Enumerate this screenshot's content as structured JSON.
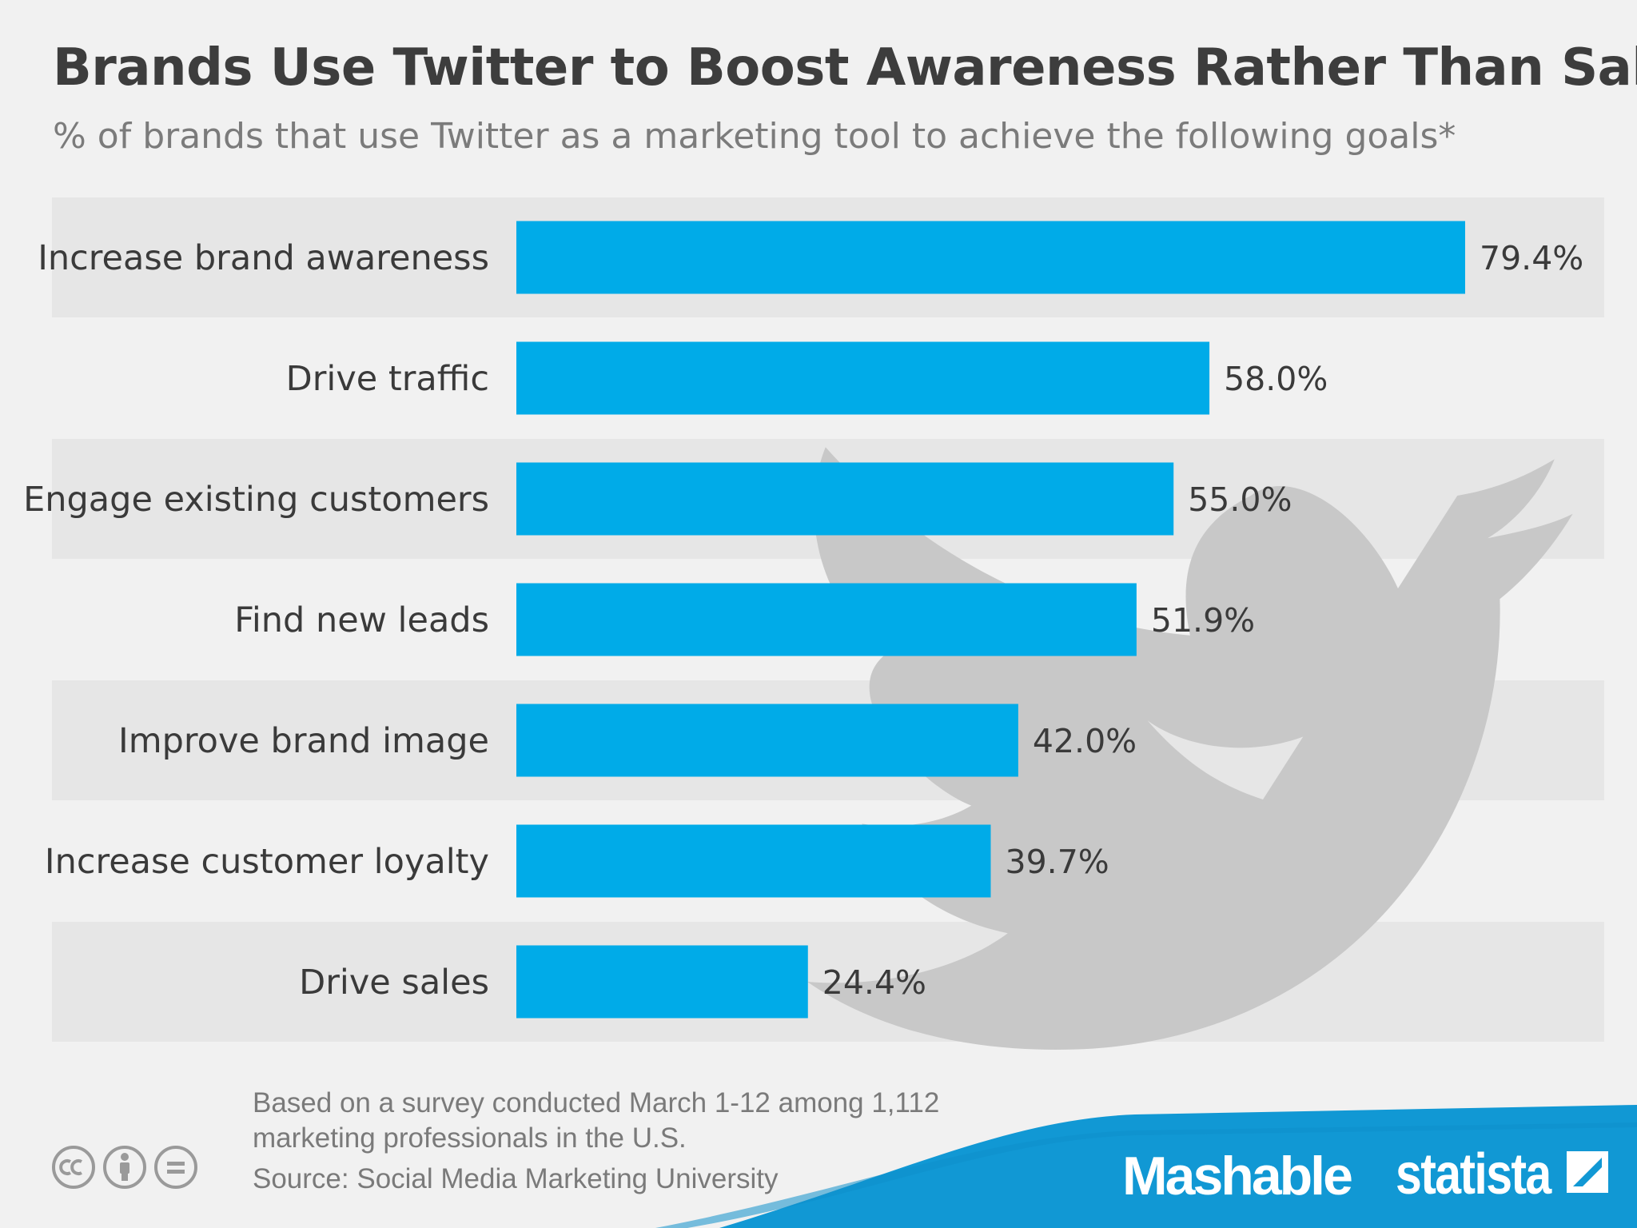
{
  "colors": {
    "bar": "#00abe8",
    "band": "#e6e6e6",
    "bird": "#c8c8c8",
    "footer_blue": "#1198d4",
    "title": "#3d3d3d"
  },
  "icons": {
    "bird": "twitter-bird-icon",
    "cc": [
      "cc-icon",
      "by-person-icon",
      "nd-equals-icon"
    ],
    "statista_logo": "statista-logo-icon"
  },
  "chart_data": {
    "type": "bar",
    "orientation": "horizontal",
    "title": "Brands Use Twitter to Boost Awareness Rather Than Sales",
    "subtitle": "% of brands that use Twitter as a marketing tool to achieve the following goals*",
    "xlabel": "",
    "ylabel": "",
    "xlim": [
      0,
      100
    ],
    "categories": [
      "Increase brand awareness",
      "Drive traffic",
      "Engage existing customers",
      "Find new leads",
      "Improve brand image",
      "Increase customer loyalty",
      "Drive sales"
    ],
    "values": [
      79.4,
      58.0,
      55.0,
      51.9,
      42.0,
      39.7,
      24.4
    ],
    "value_labels": [
      "79.4%",
      "58.0%",
      "55.0%",
      "51.9%",
      "42.0%",
      "39.7%",
      "24.4%"
    ],
    "grid": false,
    "legend": "none"
  },
  "footer": {
    "note_line1": "Based on a survey conducted March 1-12 among 1,112",
    "note_line2": "marketing professionals in the U.S.",
    "source": "Source: Social Media Marketing University",
    "brand1": "Mashable",
    "brand2": "statista"
  }
}
